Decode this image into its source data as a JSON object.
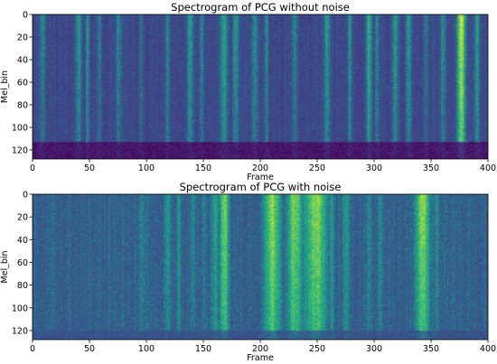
{
  "chart_data": [
    {
      "type": "heatmap",
      "title": "Spectrogram of PCG without noise",
      "xlabel": "Frame",
      "ylabel": "Mel_bin",
      "xlim": [
        0,
        400
      ],
      "ylim": [
        128,
        0
      ],
      "xticks": [
        0,
        50,
        100,
        150,
        200,
        250,
        300,
        350,
        400
      ],
      "yticks": [
        0,
        20,
        40,
        60,
        80,
        100,
        120
      ],
      "colormap": "viridis",
      "base_intensity": 0.28,
      "low_band": {
        "mel_from": 113,
        "mel_to": 128,
        "intensity": 0.05
      },
      "bands": [
        {
          "frame": 8,
          "width": 3,
          "intensity": 0.5
        },
        {
          "frame": 40,
          "width": 3,
          "intensity": 0.55
        },
        {
          "frame": 48,
          "width": 2,
          "intensity": 0.5
        },
        {
          "frame": 58,
          "width": 2,
          "intensity": 0.5
        },
        {
          "frame": 75,
          "width": 3,
          "intensity": 0.5
        },
        {
          "frame": 95,
          "width": 2,
          "intensity": 0.45
        },
        {
          "frame": 118,
          "width": 2,
          "intensity": 0.5
        },
        {
          "frame": 138,
          "width": 3,
          "intensity": 0.55
        },
        {
          "frame": 148,
          "width": 2,
          "intensity": 0.5
        },
        {
          "frame": 168,
          "width": 4,
          "intensity": 0.55
        },
        {
          "frame": 178,
          "width": 3,
          "intensity": 0.55
        },
        {
          "frame": 195,
          "width": 3,
          "intensity": 0.5
        },
        {
          "frame": 205,
          "width": 2,
          "intensity": 0.5
        },
        {
          "frame": 230,
          "width": 3,
          "intensity": 0.5
        },
        {
          "frame": 258,
          "width": 3,
          "intensity": 0.55
        },
        {
          "frame": 278,
          "width": 2,
          "intensity": 0.55
        },
        {
          "frame": 295,
          "width": 3,
          "intensity": 0.6
        },
        {
          "frame": 302,
          "width": 2,
          "intensity": 0.5
        },
        {
          "frame": 318,
          "width": 3,
          "intensity": 0.55
        },
        {
          "frame": 330,
          "width": 3,
          "intensity": 0.55
        },
        {
          "frame": 345,
          "width": 2,
          "intensity": 0.5
        },
        {
          "frame": 360,
          "width": 3,
          "intensity": 0.5
        },
        {
          "frame": 376,
          "width": 4,
          "intensity": 0.9
        },
        {
          "frame": 390,
          "width": 3,
          "intensity": 0.55
        }
      ]
    },
    {
      "type": "heatmap",
      "title": "Spectrogram of PCG with noise",
      "xlabel": "Frame",
      "ylabel": "Mel_bin",
      "xlim": [
        0,
        400
      ],
      "ylim": [
        128,
        0
      ],
      "xticks": [
        0,
        50,
        100,
        150,
        200,
        250,
        300,
        350,
        400
      ],
      "yticks": [
        0,
        20,
        40,
        60,
        80,
        100,
        120
      ],
      "colormap": "viridis",
      "base_intensity": 0.38,
      "low_band": {
        "mel_from": 120,
        "mel_to": 128,
        "intensity": 0.3
      },
      "bands": [
        {
          "frame": 95,
          "width": 2,
          "intensity": 0.5
        },
        {
          "frame": 118,
          "width": 3,
          "intensity": 0.55
        },
        {
          "frame": 128,
          "width": 2,
          "intensity": 0.5
        },
        {
          "frame": 140,
          "width": 2,
          "intensity": 0.5
        },
        {
          "frame": 150,
          "width": 2,
          "intensity": 0.5
        },
        {
          "frame": 160,
          "width": 3,
          "intensity": 0.6
        },
        {
          "frame": 168,
          "width": 4,
          "intensity": 0.82
        },
        {
          "frame": 210,
          "width": 7,
          "intensity": 0.85
        },
        {
          "frame": 230,
          "width": 7,
          "intensity": 0.8
        },
        {
          "frame": 248,
          "width": 10,
          "intensity": 0.82
        },
        {
          "frame": 262,
          "width": 3,
          "intensity": 0.55
        },
        {
          "frame": 275,
          "width": 3,
          "intensity": 0.55
        },
        {
          "frame": 295,
          "width": 2,
          "intensity": 0.5
        },
        {
          "frame": 305,
          "width": 2,
          "intensity": 0.5
        },
        {
          "frame": 342,
          "width": 6,
          "intensity": 0.85
        },
        {
          "frame": 355,
          "width": 2,
          "intensity": 0.5
        }
      ]
    }
  ]
}
